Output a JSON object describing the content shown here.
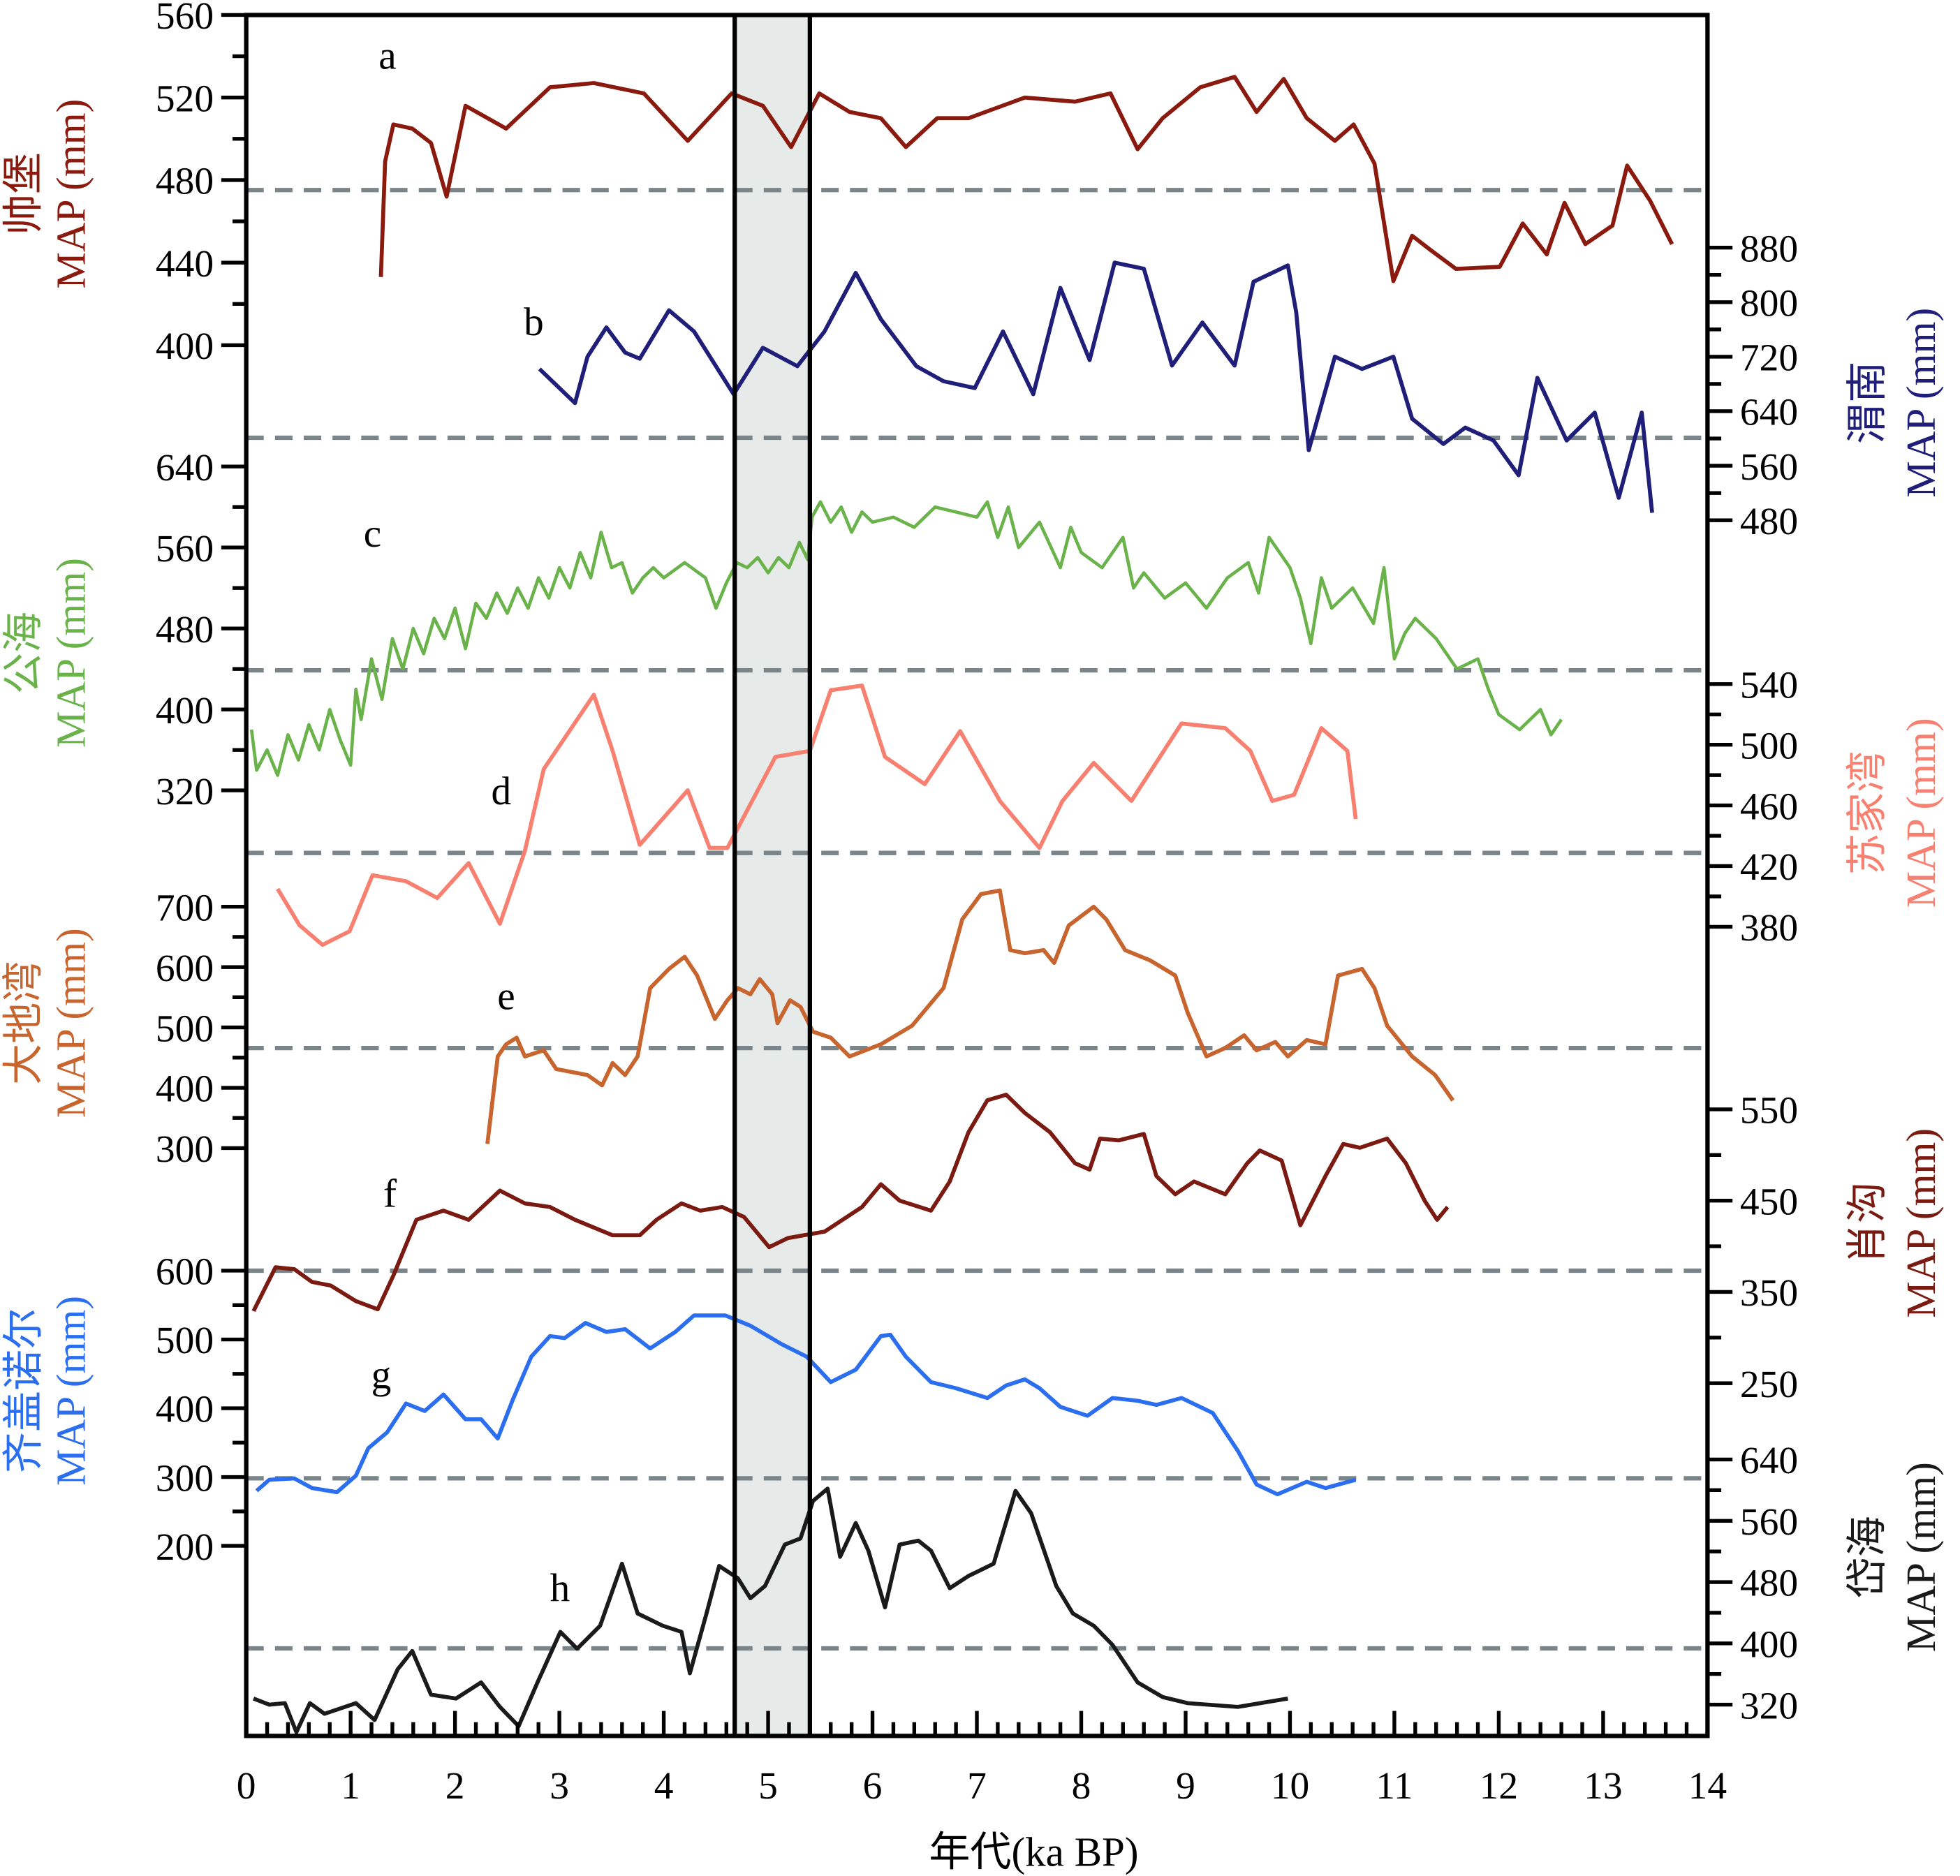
{
  "chart_data": {
    "type": "line",
    "xlabel": "年代(ka BP)",
    "xlim": [
      0,
      14
    ],
    "xticks": [
      0,
      1,
      2,
      3,
      4,
      5,
      6,
      7,
      8,
      9,
      10,
      11,
      12,
      13,
      14
    ],
    "highlight_band_ka": [
      4.68,
      5.4
    ],
    "grid": false,
    "series": [
      {
        "id": "a",
        "letter": "a",
        "site": "帅堡",
        "ylabel": "MAP (mm)",
        "axis": "left",
        "color": "#8B1A0E",
        "ticks": [
          560,
          520,
          480,
          440,
          400
        ],
        "mean": 475,
        "x": [
          1.29,
          1.33,
          1.41,
          1.59,
          1.77,
          1.92,
          2.1,
          2.49,
          2.91,
          3.33,
          3.81,
          4.23,
          4.65,
          4.95,
          5.22,
          5.49,
          5.78,
          6.08,
          6.32,
          6.62,
          6.92,
          7.46,
          7.94,
          8.28,
          8.54,
          8.78,
          9.14,
          9.47,
          9.68,
          9.94,
          10.16,
          10.43,
          10.61,
          10.81,
          10.99,
          11.17,
          11.35,
          11.59,
          12.01,
          12.23,
          12.46,
          12.63,
          12.83,
          13.09,
          13.23,
          13.45,
          13.66
        ],
        "y": [
          433,
          489,
          507,
          505,
          498,
          472,
          516,
          505,
          525,
          527,
          522,
          499,
          522,
          516,
          496,
          522,
          513,
          510,
          496,
          510,
          510,
          520,
          518,
          522,
          495,
          510,
          525,
          530,
          513,
          529,
          510,
          499,
          507,
          488,
          431,
          453,
          446,
          437,
          438,
          459,
          444,
          469,
          449,
          458,
          487,
          470,
          449
        ]
      },
      {
        "id": "b",
        "letter": "b",
        "site": "渭南",
        "ylabel": "MAP (mm)",
        "axis": "right",
        "color": "#1F1F7A",
        "ticks": [
          880,
          800,
          720,
          640,
          560,
          480
        ],
        "mean": 600,
        "x": [
          2.81,
          3.15,
          3.27,
          3.45,
          3.63,
          3.77,
          4.05,
          4.29,
          4.67,
          4.95,
          5.28,
          5.54,
          5.84,
          6.08,
          6.42,
          6.68,
          6.98,
          7.25,
          7.54,
          7.8,
          8.08,
          8.32,
          8.6,
          8.87,
          9.16,
          9.47,
          9.65,
          9.98,
          10.06,
          10.18,
          10.43,
          10.69,
          10.99,
          11.17,
          11.47,
          11.68,
          11.95,
          12.19,
          12.37,
          12.65,
          12.92,
          13.15,
          13.37,
          13.47
        ],
        "y": [
          702,
          652,
          720,
          763,
          726,
          717,
          788,
          757,
          665,
          733,
          706,
          757,
          843,
          775,
          706,
          684,
          674,
          757,
          665,
          821,
          715,
          858,
          849,
          707,
          770,
          707,
          830,
          854,
          785,
          583,
          720,
          702,
          720,
          629,
          592,
          616,
          597,
          546,
          689,
          597,
          638,
          513,
          638,
          491
        ]
      },
      {
        "id": "c",
        "letter": "c",
        "site": "公海",
        "ylabel": "MAP (mm)",
        "axis": "left",
        "color": "#6AB24A",
        "ticks": [
          640,
          560,
          480,
          400,
          320
        ],
        "mean": 440,
        "x": [
          0.05,
          0.1,
          0.2,
          0.3,
          0.4,
          0.5,
          0.6,
          0.7,
          0.8,
          0.9,
          1.0,
          1.05,
          1.1,
          1.2,
          1.3,
          1.4,
          1.5,
          1.6,
          1.7,
          1.8,
          1.9,
          2.0,
          2.1,
          2.2,
          2.3,
          2.4,
          2.5,
          2.6,
          2.7,
          2.8,
          2.9,
          3.0,
          3.1,
          3.2,
          3.3,
          3.4,
          3.5,
          3.6,
          3.7,
          3.8,
          3.9,
          4.0,
          4.2,
          4.4,
          4.5,
          4.6,
          4.7,
          4.8,
          4.9,
          5.0,
          5.1,
          5.2,
          5.3,
          5.38,
          5.42,
          5.5,
          5.6,
          5.7,
          5.8,
          5.9,
          6.0,
          6.2,
          6.4,
          6.6,
          6.8,
          7.0,
          7.1,
          7.2,
          7.3,
          7.4,
          7.6,
          7.8,
          7.9,
          8.0,
          8.2,
          8.4,
          8.5,
          8.6,
          8.8,
          9.0,
          9.2,
          9.4,
          9.6,
          9.7,
          9.8,
          10.0,
          10.1,
          10.2,
          10.3,
          10.4,
          10.6,
          10.8,
          10.9,
          11.0,
          11.1,
          11.2,
          11.4,
          11.6,
          11.8,
          11.9,
          12.0,
          12.2,
          12.4,
          12.5,
          12.6
        ],
        "y": [
          380,
          340,
          360,
          335,
          375,
          350,
          385,
          360,
          400,
          370,
          345,
          420,
          390,
          450,
          410,
          470,
          440,
          480,
          455,
          490,
          470,
          500,
          460,
          505,
          490,
          515,
          495,
          520,
          500,
          530,
          510,
          540,
          520,
          555,
          530,
          575,
          540,
          545,
          515,
          530,
          540,
          530,
          545,
          530,
          500,
          525,
          545,
          540,
          550,
          535,
          550,
          540,
          565,
          548,
          590,
          605,
          585,
          600,
          575,
          595,
          585,
          590,
          580,
          600,
          595,
          590,
          605,
          570,
          600,
          560,
          585,
          540,
          580,
          555,
          540,
          570,
          520,
          535,
          510,
          525,
          500,
          530,
          545,
          515,
          570,
          540,
          510,
          465,
          530,
          500,
          520,
          485,
          540,
          450,
          475,
          490,
          470,
          440,
          450,
          420,
          395,
          380,
          400,
          375,
          390
        ]
      },
      {
        "id": "d",
        "letter": "d",
        "site": "苏家湾",
        "ylabel": "MAP (mm)",
        "axis": "right",
        "color": "#F88070",
        "ticks": [
          540,
          500,
          460,
          420,
          380
        ],
        "mean": 420,
        "x": [
          0.3,
          0.51,
          0.73,
          0.99,
          1.21,
          1.53,
          1.83,
          2.13,
          2.43,
          2.67,
          2.85,
          3.33,
          3.51,
          3.77,
          4.23,
          4.44,
          4.61,
          5.07,
          5.4,
          5.6,
          5.9,
          6.12,
          6.5,
          6.84,
          7.22,
          7.6,
          7.82,
          8.12,
          8.48,
          8.96,
          9.38,
          9.62,
          9.83,
          10.04,
          10.3,
          10.55,
          10.63
        ],
        "y": [
          405,
          381,
          368,
          377,
          414,
          410,
          399,
          422,
          382,
          430,
          484,
          533,
          496,
          434,
          470,
          432,
          432,
          492,
          496,
          536,
          539,
          492,
          474,
          509,
          463,
          432,
          463,
          488,
          463,
          514,
          511,
          496,
          463,
          467,
          511,
          496,
          451
        ]
      },
      {
        "id": "e",
        "letter": "e",
        "site": "大地湾",
        "ylabel": "MAP (mm)",
        "axis": "left",
        "color": "#C8642E",
        "ticks": [
          700,
          600,
          500,
          400,
          300
        ],
        "mean": 465,
        "x": [
          2.31,
          2.41,
          2.49,
          2.59,
          2.67,
          2.85,
          2.97,
          3.27,
          3.41,
          3.51,
          3.63,
          3.75,
          3.87,
          4.05,
          4.2,
          4.32,
          4.49,
          4.61,
          4.71,
          4.83,
          4.92,
          5.04,
          5.09,
          5.21,
          5.31,
          5.43,
          5.6,
          5.78,
          6.08,
          6.38,
          6.68,
          6.86,
          7.04,
          7.22,
          7.32,
          7.46,
          7.64,
          7.74,
          7.88,
          8.12,
          8.24,
          8.42,
          8.66,
          8.9,
          9.02,
          9.2,
          9.38,
          9.56,
          9.68,
          9.86,
          9.98,
          10.16,
          10.34,
          10.46,
          10.69,
          10.81,
          10.93,
          11.17,
          11.39,
          11.56
        ],
        "y": [
          307,
          452,
          472,
          483,
          452,
          462,
          431,
          421,
          404,
          441,
          421,
          452,
          565,
          597,
          617,
          586,
          514,
          545,
          565,
          555,
          580,
          555,
          507,
          545,
          534,
          493,
          483,
          452,
          472,
          503,
          565,
          679,
          721,
          727,
          628,
          623,
          628,
          607,
          669,
          700,
          679,
          628,
          611,
          586,
          524,
          452,
          466,
          487,
          462,
          476,
          452,
          479,
          472,
          586,
          597,
          565,
          503,
          452,
          421,
          379
        ]
      },
      {
        "id": "f",
        "letter": "f",
        "site": "肖沟",
        "ylabel": "MAP (mm)",
        "axis": "right",
        "color": "#7A1A10",
        "ticks": [
          550,
          450,
          350,
          250
        ],
        "mean": 380,
        "x": [
          0.07,
          0.28,
          0.46,
          0.63,
          0.81,
          1.05,
          1.26,
          1.41,
          1.63,
          1.89,
          2.13,
          2.43,
          2.67,
          2.91,
          3.15,
          3.51,
          3.77,
          3.93,
          4.17,
          4.35,
          4.56,
          4.77,
          5.01,
          5.19,
          5.54,
          5.9,
          6.08,
          6.26,
          6.56,
          6.74,
          6.92,
          7.1,
          7.28,
          7.46,
          7.7,
          7.94,
          8.08,
          8.18,
          8.36,
          8.6,
          8.72,
          8.9,
          9.08,
          9.38,
          9.59,
          9.71,
          9.92,
          10.1,
          10.34,
          10.51,
          10.67,
          10.93,
          11.11,
          11.29,
          11.41,
          11.51
        ],
        "y": [
          329,
          377,
          375,
          361,
          357,
          340,
          331,
          368,
          429,
          439,
          429,
          461,
          447,
          443,
          429,
          412,
          412,
          429,
          447,
          439,
          443,
          432,
          399,
          409,
          416,
          443,
          468,
          450,
          439,
          471,
          525,
          560,
          566,
          546,
          525,
          491,
          484,
          518,
          516,
          523,
          477,
          457,
          471,
          457,
          491,
          505,
          494,
          423,
          477,
          512,
          508,
          518,
          491,
          450,
          429,
          443
        ]
      },
      {
        "id": "g",
        "letter": "g",
        "site": "齐盖诺尔",
        "ylabel": "MAP (mm)",
        "axis": "left",
        "color": "#2B6FF0",
        "ticks": [
          600,
          500,
          400,
          300,
          200
        ],
        "mean": 300,
        "x": [
          0.1,
          0.22,
          0.46,
          0.63,
          0.87,
          1.05,
          1.17,
          1.35,
          1.53,
          1.71,
          1.89,
          2.1,
          2.25,
          2.41,
          2.55,
          2.73,
          2.91,
          3.05,
          3.25,
          3.45,
          3.63,
          3.87,
          4.11,
          4.29,
          4.59,
          4.83,
          5.13,
          5.37,
          5.6,
          5.84,
          6.08,
          6.17,
          6.32,
          6.56,
          6.8,
          7.1,
          7.28,
          7.46,
          7.6,
          7.8,
          8.06,
          8.3,
          8.54,
          8.72,
          8.96,
          9.26,
          9.5,
          9.68,
          9.88,
          10.16,
          10.34,
          10.63
        ],
        "y": [
          280,
          296,
          298,
          284,
          278,
          302,
          342,
          365,
          407,
          396,
          420,
          384,
          384,
          356,
          411,
          475,
          505,
          502,
          524,
          511,
          515,
          487,
          511,
          535,
          535,
          520,
          493,
          475,
          438,
          456,
          505,
          507,
          475,
          438,
          429,
          415,
          433,
          442,
          429,
          402,
          389,
          415,
          411,
          405,
          415,
          393,
          338,
          289,
          275,
          293,
          284,
          296
        ]
      },
      {
        "id": "h",
        "letter": "h",
        "site": "岱海",
        "ylabel": "MAP (mm)",
        "axis": "right",
        "color": "#1A1A1A",
        "ticks": [
          640,
          560,
          480,
          400,
          320
        ],
        "mean": 400,
        "x": [
          0.07,
          0.22,
          0.37,
          0.48,
          0.61,
          0.75,
          1.05,
          1.23,
          1.45,
          1.59,
          1.77,
          2.01,
          2.25,
          2.43,
          2.61,
          2.79,
          3.01,
          3.17,
          3.39,
          3.6,
          3.75,
          3.99,
          4.17,
          4.25,
          4.41,
          4.53,
          4.71,
          4.83,
          4.97,
          5.16,
          5.31,
          5.43,
          5.57,
          5.69,
          5.84,
          5.96,
          6.12,
          6.26,
          6.44,
          6.56,
          6.74,
          6.92,
          7.16,
          7.37,
          7.52,
          7.76,
          7.92,
          8.12,
          8.3,
          8.54,
          8.78,
          9.02,
          9.5,
          9.98
        ],
        "y": [
          328,
          320,
          322,
          284,
          322,
          308,
          322,
          300,
          366,
          390,
          333,
          328,
          349,
          317,
          292,
          349,
          415,
          393,
          423,
          504,
          439,
          423,
          415,
          361,
          439,
          501,
          485,
          459,
          475,
          529,
          537,
          586,
          602,
          513,
          557,
          521,
          447,
          529,
          534,
          521,
          472,
          488,
          504,
          599,
          570,
          475,
          439,
          423,
          398,
          349,
          330,
          322,
          317,
          328
        ]
      }
    ]
  }
}
